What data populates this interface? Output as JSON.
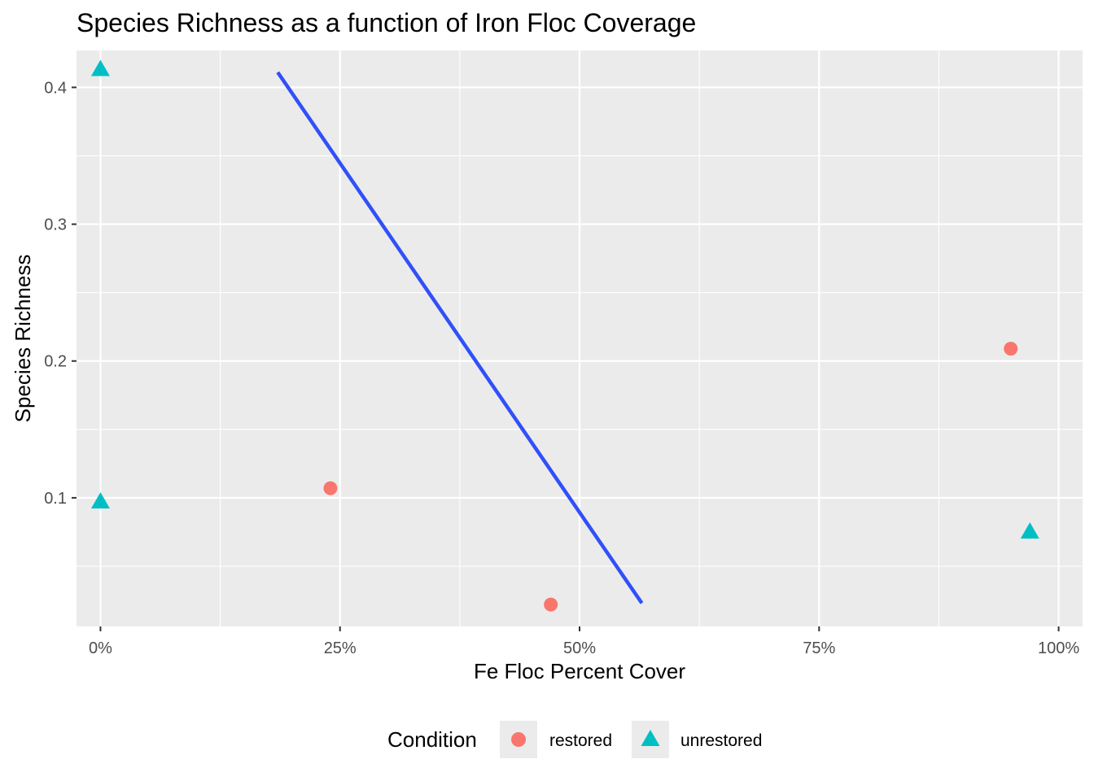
{
  "chart_data": {
    "type": "scatter",
    "title": "Species Richness as a function of Iron Floc Coverage",
    "xlabel": "Fe Floc Percent Cover",
    "ylabel": "Species Richness",
    "xlim": [
      -0.025,
      1.025
    ],
    "ylim": [
      0.006,
      0.427
    ],
    "x_ticks": [
      0,
      0.25,
      0.5,
      0.75,
      1.0
    ],
    "x_tick_labels": [
      "0%",
      "25%",
      "50%",
      "75%",
      "100%"
    ],
    "y_ticks": [
      0.1,
      0.2,
      0.3,
      0.4
    ],
    "y_tick_labels": [
      "0.1",
      "0.2",
      "0.3",
      "0.4"
    ],
    "grid": true,
    "legend": {
      "title": "Condition",
      "position": "bottom",
      "entries": [
        {
          "label": "restored",
          "shape": "circle",
          "color": "#F8766D"
        },
        {
          "label": "unrestored",
          "shape": "triangle",
          "color": "#00BFC4"
        }
      ]
    },
    "series": [
      {
        "name": "restored",
        "shape": "circle",
        "color": "#F8766D",
        "points": [
          {
            "x": 0.24,
            "y": 0.107
          },
          {
            "x": 0.47,
            "y": 0.022
          },
          {
            "x": 0.95,
            "y": 0.209
          }
        ]
      },
      {
        "name": "unrestored",
        "shape": "triangle",
        "color": "#00BFC4",
        "points": [
          {
            "x": 0.0,
            "y": 0.413
          },
          {
            "x": 0.0,
            "y": 0.097
          },
          {
            "x": 0.97,
            "y": 0.075
          }
        ]
      }
    ],
    "trend_line": {
      "color": "#3050F8",
      "x": [
        0.185,
        0.565
      ],
      "y": [
        0.411,
        0.023
      ]
    }
  }
}
